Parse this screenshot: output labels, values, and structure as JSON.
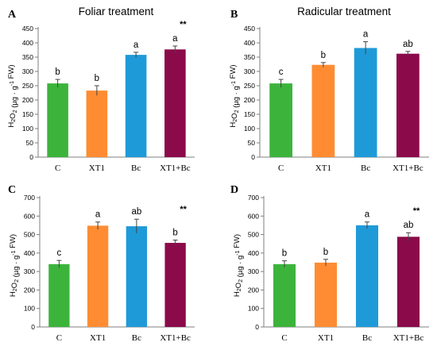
{
  "chart_data": [
    {
      "type": "bar",
      "panel": "A",
      "title": "Foliar treatment",
      "ylabel": "H2O2 (µg · g-1 FW)",
      "categories": [
        "C",
        "XT1",
        "Bc",
        "XT1+Bc"
      ],
      "values": [
        258,
        233,
        358,
        377
      ],
      "errors": [
        14,
        17,
        9,
        12
      ],
      "letters": [
        "b",
        "b",
        "a",
        "a"
      ],
      "annotation": "**",
      "ylim": [
        0,
        450
      ],
      "yticks": [
        0,
        50,
        100,
        150,
        200,
        250,
        300,
        350,
        400,
        450
      ],
      "colors": [
        "#3cb43c",
        "#ff8c32",
        "#1f9ad8",
        "#8b0a4a"
      ]
    },
    {
      "type": "bar",
      "panel": "B",
      "title": "Radicular treatment",
      "ylabel": "H2O2 (µg · g-1 FW)",
      "categories": [
        "C",
        "XT1",
        "Bc",
        "XT1+Bc"
      ],
      "values": [
        258,
        323,
        382,
        362
      ],
      "errors": [
        14,
        8,
        22,
        8
      ],
      "letters": [
        "c",
        "b",
        "a",
        "ab"
      ],
      "annotation": "",
      "ylim": [
        0,
        450
      ],
      "yticks": [
        0,
        50,
        100,
        150,
        200,
        250,
        300,
        350,
        400,
        450
      ],
      "colors": [
        "#3cb43c",
        "#ff8c32",
        "#1f9ad8",
        "#8b0a4a"
      ]
    },
    {
      "type": "bar",
      "panel": "C",
      "title": "",
      "ylabel": "H2O2 (µg · g-1 FW)",
      "categories": [
        "C",
        "XT1",
        "Bc",
        "XT1+Bc"
      ],
      "values": [
        340,
        548,
        545,
        455
      ],
      "errors": [
        20,
        20,
        38,
        15
      ],
      "letters": [
        "c",
        "a",
        "ab",
        "b"
      ],
      "annotation": "**",
      "ylim": [
        0,
        700
      ],
      "yticks": [
        0,
        100,
        200,
        300,
        400,
        500,
        600,
        700
      ],
      "colors": [
        "#3cb43c",
        "#ff8c32",
        "#1f9ad8",
        "#8b0a4a"
      ]
    },
    {
      "type": "bar",
      "panel": "D",
      "title": "",
      "ylabel": "H2O2 (µg · g-1 FW)",
      "categories": [
        "C",
        "XT1",
        "Bc",
        "XT1+Bc"
      ],
      "values": [
        340,
        348,
        550,
        488
      ],
      "errors": [
        18,
        18,
        18,
        22
      ],
      "letters": [
        "b",
        "b",
        "a",
        "ab"
      ],
      "annotation": "**",
      "ylim": [
        0,
        700
      ],
      "yticks": [
        0,
        100,
        200,
        300,
        400,
        500,
        600,
        700
      ],
      "colors": [
        "#3cb43c",
        "#ff8c32",
        "#1f9ad8",
        "#8b0a4a"
      ]
    }
  ]
}
